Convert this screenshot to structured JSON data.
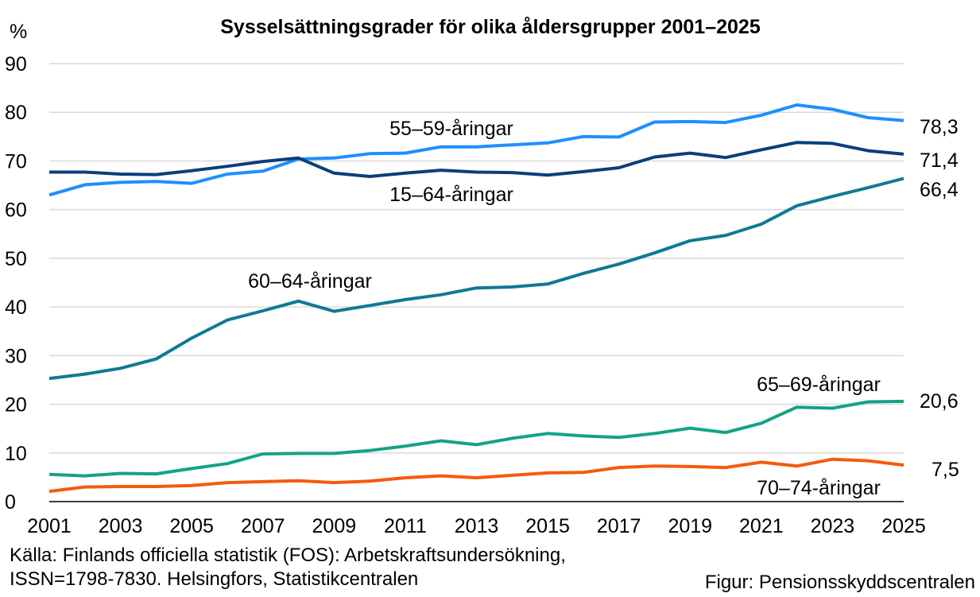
{
  "chart_data": {
    "type": "line",
    "title": "Sysselsättningsgrader för olika åldersgrupper 2001–2025",
    "ylabel": "%",
    "xlabel": "",
    "ylim": [
      0,
      90
    ],
    "yticks": [
      0,
      10,
      20,
      30,
      40,
      50,
      60,
      70,
      80,
      90
    ],
    "xticks": [
      "2001",
      "2003",
      "2005",
      "2007",
      "2009",
      "2011",
      "2013",
      "2015",
      "2017",
      "2019",
      "2021",
      "2023",
      "2025"
    ],
    "grid": true,
    "legend": "inline labels",
    "x": [
      2001,
      2002,
      2003,
      2004,
      2005,
      2006,
      2007,
      2008,
      2009,
      2010,
      2011,
      2012,
      2013,
      2014,
      2015,
      2016,
      2017,
      2018,
      2019,
      2020,
      2021,
      2022,
      2023,
      2024,
      2025
    ],
    "series": [
      {
        "name": "55–59-åringar",
        "color": "#1e8fff",
        "end_label": "78,3",
        "values": [
          63.0,
          65.1,
          65.6,
          65.8,
          65.4,
          67.3,
          67.9,
          70.4,
          70.6,
          71.5,
          71.6,
          72.9,
          72.9,
          73.3,
          73.7,
          75.0,
          74.9,
          78.0,
          78.1,
          77.9,
          79.4,
          81.5,
          80.6,
          78.9,
          78.3
        ]
      },
      {
        "name": "15–64-åringar",
        "color": "#0a3f7a",
        "end_label": "71,4",
        "values": [
          67.7,
          67.7,
          67.3,
          67.2,
          68.0,
          68.9,
          69.9,
          70.6,
          67.5,
          66.8,
          67.5,
          68.1,
          67.7,
          67.6,
          67.1,
          67.8,
          68.6,
          70.8,
          71.6,
          70.7,
          72.3,
          73.8,
          73.6,
          72.1,
          71.4
        ]
      },
      {
        "name": "60–64-åringar",
        "color": "#0e7a94",
        "end_label": "66,4",
        "values": [
          25.3,
          26.2,
          27.4,
          29.3,
          33.6,
          37.3,
          39.2,
          41.2,
          39.1,
          40.3,
          41.5,
          42.5,
          43.9,
          44.1,
          44.7,
          46.9,
          48.8,
          51.1,
          53.6,
          54.7,
          57.0,
          60.8,
          62.7,
          64.5,
          66.4
        ]
      },
      {
        "name": "65–69-åringar",
        "color": "#12a386",
        "end_label": "20,6",
        "values": [
          5.6,
          5.3,
          5.8,
          5.7,
          6.8,
          7.8,
          9.8,
          9.9,
          9.9,
          10.5,
          11.4,
          12.5,
          11.7,
          13.0,
          14.0,
          13.5,
          13.2,
          14.0,
          15.1,
          14.2,
          16.1,
          19.4,
          19.2,
          20.5,
          20.6
        ]
      },
      {
        "name": "70–74-åringar",
        "color": "#f55a0c",
        "end_label": "7,5",
        "values": [
          2.1,
          3.0,
          3.1,
          3.1,
          3.3,
          3.9,
          4.1,
          4.3,
          3.9,
          4.2,
          4.9,
          5.3,
          4.9,
          5.4,
          5.9,
          6.0,
          7.0,
          7.3,
          7.2,
          7.0,
          8.1,
          7.3,
          8.7,
          8.4,
          7.5
        ]
      }
    ]
  },
  "footer": {
    "source_line1": "Källa: Finlands officiella statistik (FOS): Arbetskraftsundersökning,",
    "source_line2": "ISSN=1798-7830. Helsingfors, Statistikcentralen",
    "credit": "Figur: Pensionsskyddscentralen"
  }
}
